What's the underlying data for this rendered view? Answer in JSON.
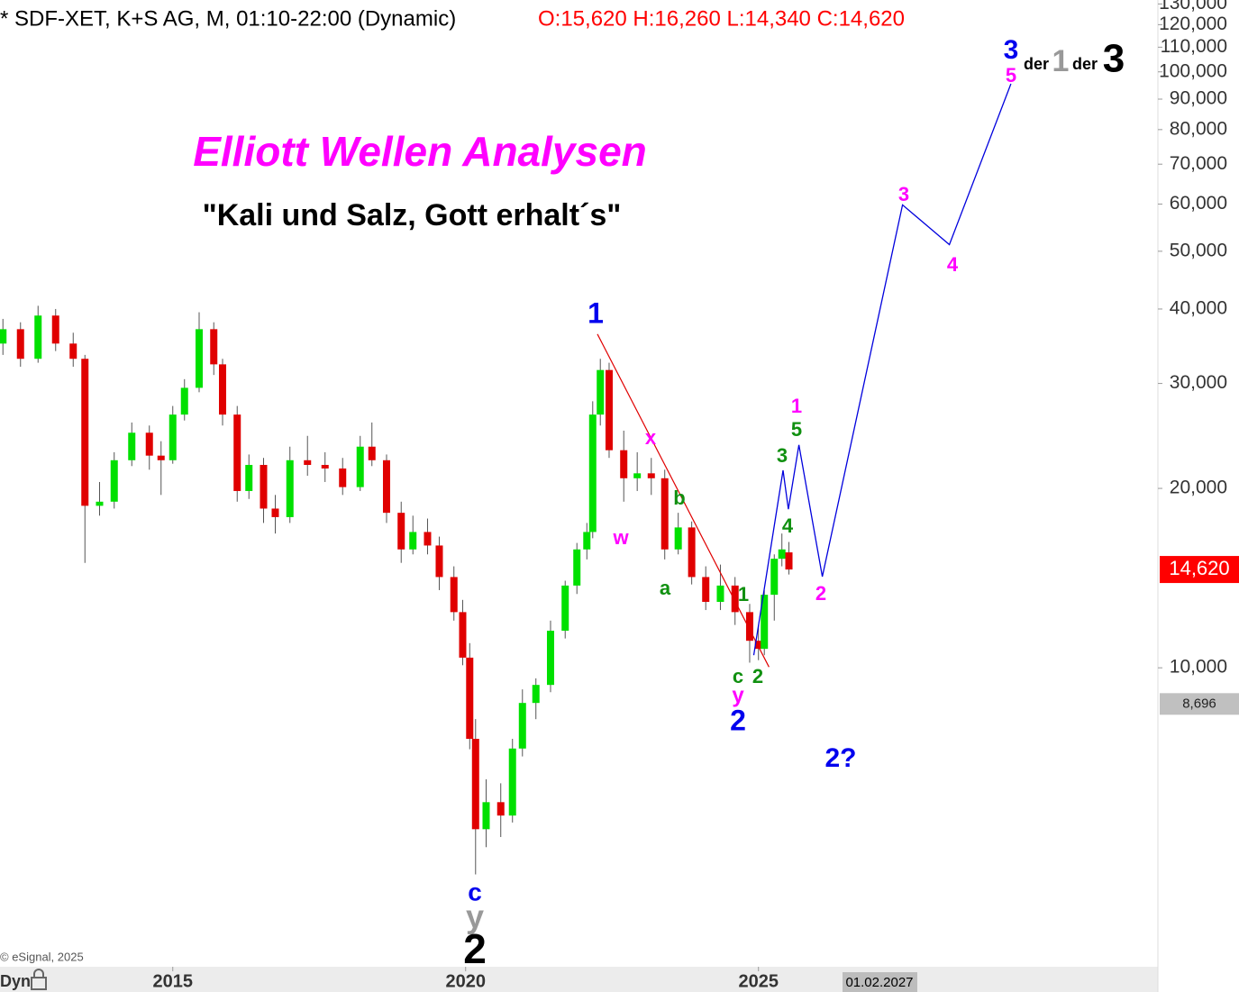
{
  "chart_data": {
    "type": "candlestick",
    "header": "* SDF-XET, K+S AG, M, 01:10-22:00 (Dynamic)",
    "ohlc_text": "O:15,620 H:16,260 L:14,340 C:14,620",
    "title": "Elliott Wellen Analysen",
    "subtitle": "\"Kali und Salz, Gott erhalt´s\"",
    "copyright": "© eSignal, 2025",
    "footer_label": "Dyn",
    "cursor_date": "01.02.2027",
    "log_scale": true,
    "up_color": "#00e000",
    "down_color": "#e00000",
    "wick_color": "#555555",
    "x": [
      2012.1,
      2012.4,
      2012.7,
      2013.0,
      2013.3,
      2013.5,
      2013.75,
      2014.0,
      2014.3,
      2014.6,
      2014.8,
      2015.0,
      2015.2,
      2015.45,
      2015.7,
      2015.85,
      2016.1,
      2016.3,
      2016.55,
      2016.75,
      2017.0,
      2017.3,
      2017.6,
      2017.9,
      2018.2,
      2018.4,
      2018.65,
      2018.9,
      2019.1,
      2019.35,
      2019.55,
      2019.8,
      2019.95,
      2020.07,
      2020.17,
      2020.35,
      2020.6,
      2020.8,
      2020.97,
      2021.2,
      2021.45,
      2021.7,
      2021.9,
      2022.07,
      2022.17,
      2022.3,
      2022.45,
      2022.7,
      2022.93,
      2023.17,
      2023.4,
      2023.63,
      2023.86,
      2024.1,
      2024.35,
      2024.6,
      2024.85,
      2025.0,
      2025.1,
      2025.27,
      2025.4,
      2025.52
    ],
    "open": [
      35000,
      37000,
      33000,
      39000,
      35000,
      33000,
      18700,
      19000,
      22300,
      24800,
      22700,
      22300,
      26600,
      29500,
      37000,
      32300,
      26600,
      19800,
      21900,
      18500,
      17900,
      22300,
      21900,
      21600,
      20100,
      23500,
      22300,
      18200,
      15800,
      16900,
      16040,
      14200,
      12400,
      10400,
      7600,
      5360,
      5950,
      5650,
      7320,
      8730,
      9360,
      11540,
      13740,
      15800,
      16900,
      26600,
      31600,
      23180,
      20800,
      21200,
      20800,
      15800,
      17200,
      14200,
      12900,
      13740,
      12400,
      11100,
      10760,
      13260,
      15240,
      15620
    ],
    "high": [
      38500,
      38000,
      40500,
      40000,
      36500,
      33500,
      20500,
      23000,
      25800,
      25500,
      24000,
      27500,
      30500,
      39500,
      38000,
      33000,
      27500,
      22800,
      22500,
      19500,
      23500,
      24500,
      23000,
      22500,
      24500,
      25800,
      22800,
      19000,
      18000,
      17800,
      16600,
      14800,
      13000,
      11000,
      8200,
      6500,
      6400,
      7600,
      9200,
      9600,
      12000,
      14000,
      16200,
      17500,
      28000,
      33000,
      32500,
      25000,
      23000,
      22500,
      21500,
      18200,
      17600,
      14800,
      14900,
      14200,
      12800,
      11800,
      13500,
      15500,
      16800,
      16260
    ],
    "low": [
      33500,
      32000,
      32500,
      34000,
      32000,
      15000,
      18000,
      18500,
      21800,
      21500,
      19500,
      22000,
      26000,
      29000,
      31000,
      25500,
      19000,
      19200,
      17500,
      16800,
      17500,
      21000,
      20500,
      19500,
      19800,
      21800,
      17500,
      15000,
      15500,
      15500,
      13500,
      12000,
      10100,
      7300,
      4500,
      5000,
      5200,
      5500,
      7100,
      8200,
      9100,
      11200,
      13300,
      15200,
      16500,
      25500,
      22500,
      19000,
      19800,
      19500,
      15200,
      15500,
      13800,
      12500,
      12500,
      11800,
      10200,
      10300,
      10500,
      12000,
      14800,
      14340
    ],
    "close": [
      37000,
      33000,
      39000,
      35000,
      33000,
      18700,
      19000,
      22300,
      24800,
      22700,
      22300,
      26600,
      29500,
      37000,
      32300,
      26600,
      19800,
      21900,
      18500,
      17900,
      22300,
      21900,
      21600,
      20100,
      23500,
      22300,
      18200,
      15800,
      16900,
      16040,
      14200,
      12400,
      10400,
      7600,
      5360,
      5950,
      5650,
      7320,
      8730,
      9360,
      11540,
      13740,
      15800,
      16900,
      26600,
      31600,
      23180,
      20800,
      21200,
      20800,
      15800,
      17200,
      14200,
      12900,
      13740,
      12400,
      11100,
      10760,
      13260,
      15240,
      15800,
      14620
    ],
    "xlim": [
      2012.05,
      2031.82
    ],
    "ylim": [
      3150,
      132000
    ],
    "xticks": [
      2015,
      2020,
      2025
    ],
    "yticks": [
      {
        "value": 10000,
        "label": "10,000"
      },
      {
        "value": 20000,
        "label": "20,000"
      },
      {
        "value": 30000,
        "label": "30,000"
      },
      {
        "value": 40000,
        "label": "40,000"
      },
      {
        "value": 50000,
        "label": "50,000"
      },
      {
        "value": 60000,
        "label": "60,000"
      },
      {
        "value": 70000,
        "label": "70,000"
      },
      {
        "value": 80000,
        "label": "80,000"
      },
      {
        "value": 90000,
        "label": "90,000"
      },
      {
        "value": 100000,
        "label": "100,000"
      },
      {
        "value": 110000,
        "label": "110,000"
      },
      {
        "value": 120000,
        "label": "120,000"
      },
      {
        "value": 130000,
        "label": "130,000"
      }
    ],
    "last_price": {
      "value": 14620,
      "label": "14,620",
      "color": "#ff0000"
    },
    "cursor_price": {
      "value": 8696,
      "label": "8,696",
      "color": "#c0c0c0"
    },
    "projection": {
      "color": "#0000dd",
      "x": [
        2024.92,
        2025.42,
        2025.51,
        2025.69,
        2026.09,
        2027.46,
        2028.26,
        2029.31
      ],
      "values": [
        10500,
        21450,
        18450,
        23660,
        14220,
        59800,
        51300,
        95500
      ]
    },
    "trendline": {
      "color": "#e00000",
      "x": [
        2022.25,
        2025.18
      ],
      "values": [
        36300,
        10030
      ]
    },
    "annotations": [
      {
        "text": "1",
        "color": "#0000ee"
      },
      {
        "text": "x",
        "color": "#ff00ff"
      },
      {
        "text": "w",
        "color": "#ff00ff"
      },
      {
        "text": "b",
        "color": "#109010"
      },
      {
        "text": "a",
        "color": "#109010"
      },
      {
        "text": "1",
        "color": "#109010"
      },
      {
        "text": "c",
        "color": "#109010"
      },
      {
        "text": "2",
        "color": "#109010"
      },
      {
        "text": "y",
        "color": "#ff00ff"
      },
      {
        "text": "2",
        "color": "#0000ee"
      },
      {
        "text": "2?",
        "color": "#0000ee"
      },
      {
        "text": "3",
        "color": "#109010"
      },
      {
        "text": "4",
        "color": "#109010"
      },
      {
        "text": "5",
        "color": "#109010"
      },
      {
        "text": "1",
        "color": "#ff00ff"
      },
      {
        "text": "2",
        "color": "#ff00ff"
      },
      {
        "text": "3",
        "color": "#ff00ff"
      },
      {
        "text": "4",
        "color": "#ff00ff"
      },
      {
        "text": "c",
        "color": "#0000ee"
      },
      {
        "text": "y",
        "color": "#999999"
      },
      {
        "text": "2",
        "color": "#000000"
      },
      {
        "text": "3",
        "color": "#0000ee"
      },
      {
        "text": "5",
        "color": "#ff00ff"
      },
      {
        "text": "der",
        "color": "#000000"
      },
      {
        "text": "1",
        "color": "#999999"
      },
      {
        "text": "der",
        "color": "#000000"
      },
      {
        "text": "3",
        "color": "#000000"
      }
    ]
  }
}
